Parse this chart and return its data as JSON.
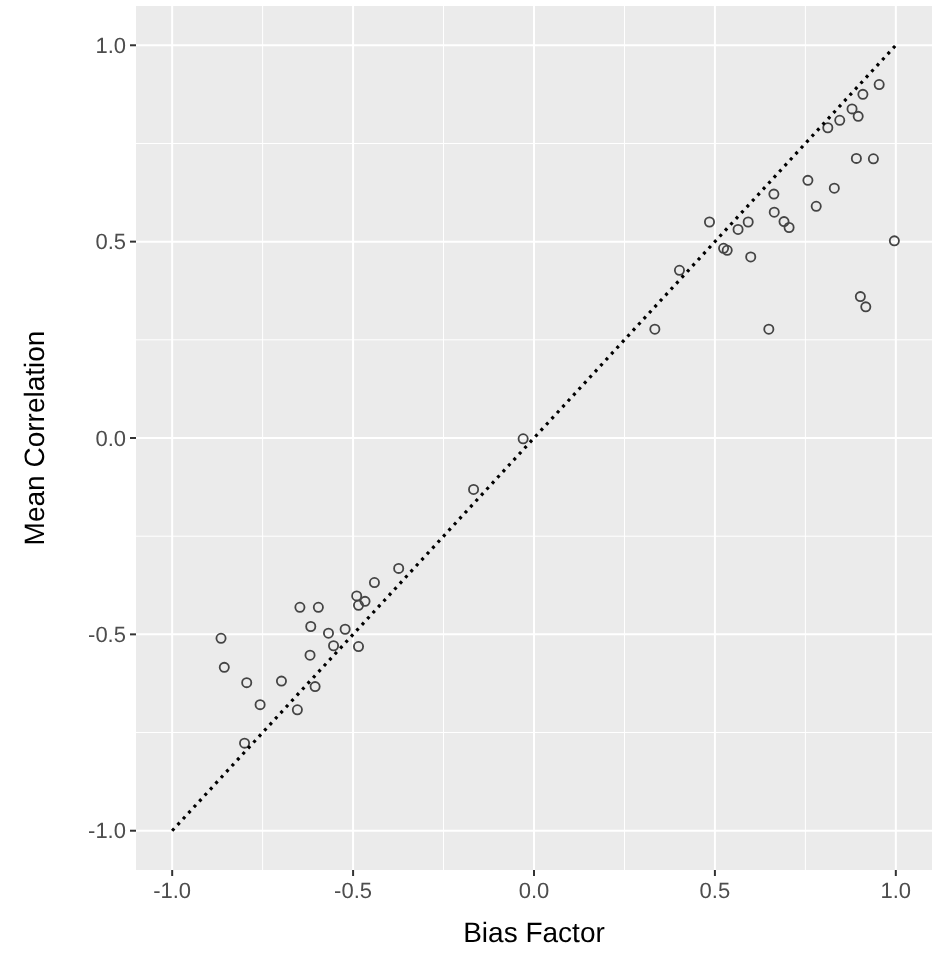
{
  "chart_data": {
    "type": "scatter",
    "xlabel": "Bias Factor",
    "ylabel": "Mean Correlation",
    "xlim": [
      -1.1,
      1.1
    ],
    "ylim": [
      -1.1,
      1.1
    ],
    "xticks": [
      {
        "value": -1,
        "label": "-1.0"
      },
      -0.5,
      {
        "value": 0,
        "label": "0.0"
      },
      0.5,
      {
        "value": 1,
        "label": "1.0"
      }
    ],
    "yticks": [
      {
        "value": -1,
        "label": "-1.0"
      },
      -0.5,
      {
        "value": 0,
        "label": "0.0"
      },
      0.5,
      {
        "value": 1,
        "label": "1.0"
      }
    ],
    "grid": true,
    "series": [
      {
        "marker": "circle",
        "color": "#444444",
        "x": [
          -0.865,
          -0.856,
          -0.8,
          -0.794,
          -0.757,
          -0.698,
          -0.654,
          -0.647,
          -0.619,
          -0.617,
          -0.605,
          -0.596,
          -0.568,
          -0.554,
          -0.522,
          -0.49,
          -0.485,
          -0.485,
          -0.467,
          -0.441,
          -0.374,
          -0.167,
          -0.03,
          0.334,
          0.402,
          0.485,
          0.524,
          0.534,
          0.564,
          0.592,
          0.599,
          0.649,
          0.663,
          0.664,
          0.691,
          0.705,
          0.757,
          0.78,
          0.812,
          0.83,
          0.845,
          0.879,
          0.891,
          0.896,
          0.902,
          0.909,
          0.917,
          0.938,
          0.954,
          0.996
        ],
        "values": [
          -0.51,
          -0.584,
          -0.777,
          -0.623,
          -0.679,
          -0.619,
          -0.692,
          -0.431,
          -0.553,
          -0.48,
          -0.633,
          -0.431,
          -0.497,
          -0.529,
          -0.487,
          -0.402,
          -0.426,
          -0.531,
          -0.416,
          -0.368,
          -0.332,
          -0.131,
          -0.002,
          0.277,
          0.427,
          0.55,
          0.483,
          0.478,
          0.531,
          0.55,
          0.461,
          0.277,
          0.621,
          0.575,
          0.551,
          0.536,
          0.656,
          0.59,
          0.79,
          0.636,
          0.809,
          0.838,
          0.712,
          0.819,
          0.36,
          0.875,
          0.334,
          0.711,
          0.9,
          0.502
        ]
      },
      {
        "type": "line",
        "line_style": "dotted",
        "color": "#000000",
        "x": [
          -1,
          1
        ],
        "values": [
          -1,
          1
        ]
      }
    ]
  }
}
